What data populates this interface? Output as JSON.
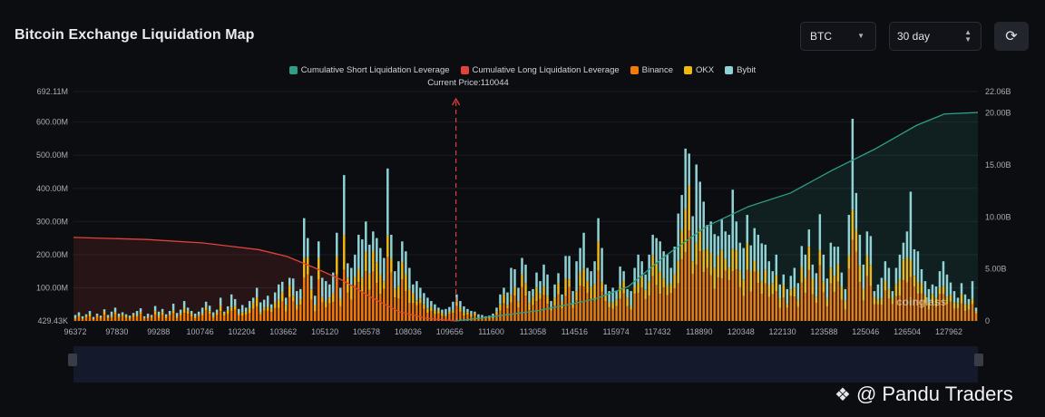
{
  "title": "Bitcoin Exchange Liquidation Map",
  "controls": {
    "coin": "BTC",
    "range": "30 day",
    "refresh_icon": "refresh-icon"
  },
  "colors": {
    "short": "#2e9e86",
    "long": "#e0433a",
    "binance": "#f07b0a",
    "okx": "#f2b812",
    "bybit": "#8fd3d6"
  },
  "watermark": "coinglass",
  "overlay_text": "@ Pandu Traders",
  "chart_data": {
    "type": "bar",
    "title": "Bitcoin Exchange Liquidation Map",
    "current_price_label": "Current Price:110044",
    "current_price": 110044,
    "legend": [
      "Cumulative Short Liquidation Leverage",
      "Cumulative Long Liquidation Leverage",
      "Binance",
      "OKX",
      "Bybit"
    ],
    "x_tick_labels": [
      "96372",
      "97830",
      "99288",
      "100746",
      "102204",
      "103662",
      "105120",
      "106578",
      "108036",
      "109656",
      "111600",
      "113058",
      "114516",
      "115974",
      "117432",
      "118890",
      "120348",
      "122130",
      "123588",
      "125046",
      "126504",
      "127962"
    ],
    "xlim": [
      96372,
      128700
    ],
    "y_left_tick_labels": [
      "692.11M",
      "600.00M",
      "500.00M",
      "400.00M",
      "300.00M",
      "200.00M",
      "100.00M",
      "429.43K"
    ],
    "y_left_ticks": [
      692.11,
      600,
      500,
      400,
      300,
      200,
      100,
      0.43
    ],
    "y_left_range": [
      0,
      692.11
    ],
    "y_left_unit": "M",
    "y_right_tick_labels": [
      "22.06B",
      "20.00B",
      "15.00B",
      "10.00B",
      "5.00B",
      "0"
    ],
    "y_right_ticks": [
      22.06,
      20,
      15,
      10,
      5,
      0
    ],
    "y_right_range": [
      0,
      22.06
    ],
    "y_right_unit": "B",
    "bars_total": [
      18,
      26,
      14,
      20,
      30,
      12,
      22,
      16,
      35,
      18,
      28,
      40,
      22,
      26,
      20,
      16,
      24,
      30,
      38,
      14,
      22,
      18,
      45,
      28,
      36,
      20,
      30,
      52,
      24,
      34,
      60,
      40,
      30,
      22,
      28,
      40,
      58,
      46,
      26,
      34,
      70,
      28,
      44,
      80,
      66,
      36,
      48,
      40,
      60,
      70,
      100,
      56,
      64,
      76,
      50,
      86,
      110,
      118,
      70,
      130,
      128,
      90,
      96,
      310,
      250,
      136,
      76,
      240,
      130,
      120,
      110,
      146,
      266,
      100,
      440,
      174,
      160,
      200,
      260,
      246,
      300,
      230,
      270,
      250,
      220,
      190,
      460,
      260,
      150,
      180,
      240,
      210,
      160,
      110,
      120,
      100,
      84,
      70,
      60,
      50,
      40,
      34,
      36,
      42,
      58,
      80,
      60,
      44,
      36,
      30,
      28,
      20,
      18,
      14,
      16,
      22,
      40,
      80,
      100,
      86,
      160,
      156,
      100,
      190,
      170,
      90,
      96,
      146,
      120,
      170,
      140,
      60,
      110,
      144,
      80,
      196,
      196,
      90,
      180,
      220,
      266,
      160,
      150,
      180,
      310,
      220,
      110,
      90,
      100,
      90,
      164,
      150,
      96,
      90,
      160,
      200,
      180,
      140,
      200,
      260,
      250,
      240,
      210,
      200,
      160,
      224,
      324,
      380,
      520,
      505,
      316,
      472,
      420,
      360,
      290,
      300,
      262,
      256,
      306,
      270,
      260,
      396,
      300,
      236,
      220,
      320,
      228,
      280,
      260,
      234,
      230,
      180,
      150,
      200,
      110,
      140,
      96,
      136,
      160,
      114,
      226,
      200,
      276,
      170,
      144,
      322,
      200,
      128,
      236,
      224,
      224,
      146,
      96,
      320,
      610,
      386,
      260,
      170,
      270,
      256,
      90,
      110,
      130,
      180,
      160,
      90,
      160,
      200,
      236,
      270,
      390,
      216,
      210,
      156,
      120,
      96,
      110,
      104,
      150,
      180,
      140,
      116,
      90,
      70,
      114,
      80,
      66,
      120,
      40
    ],
    "cumulative_long_B": {
      "x": [
        96372,
        99000,
        101000,
        103000,
        104000,
        105000,
        106000,
        107000,
        108000,
        109000,
        110044
      ],
      "y": [
        8.03,
        7.83,
        7.5,
        6.85,
        6.2,
        5.1,
        3.9,
        2.3,
        0.9,
        0.25,
        0
      ]
    },
    "cumulative_short_B": {
      "x": [
        110044,
        111000,
        113000,
        115000,
        116200,
        117500,
        119000,
        120500,
        122000,
        123500,
        125000,
        126500,
        127500,
        128700
      ],
      "y": [
        0,
        0.3,
        1.0,
        2.1,
        3.3,
        6.2,
        9.1,
        11.0,
        12.3,
        14.5,
        16.5,
        18.8,
        19.9,
        20.05
      ]
    }
  }
}
